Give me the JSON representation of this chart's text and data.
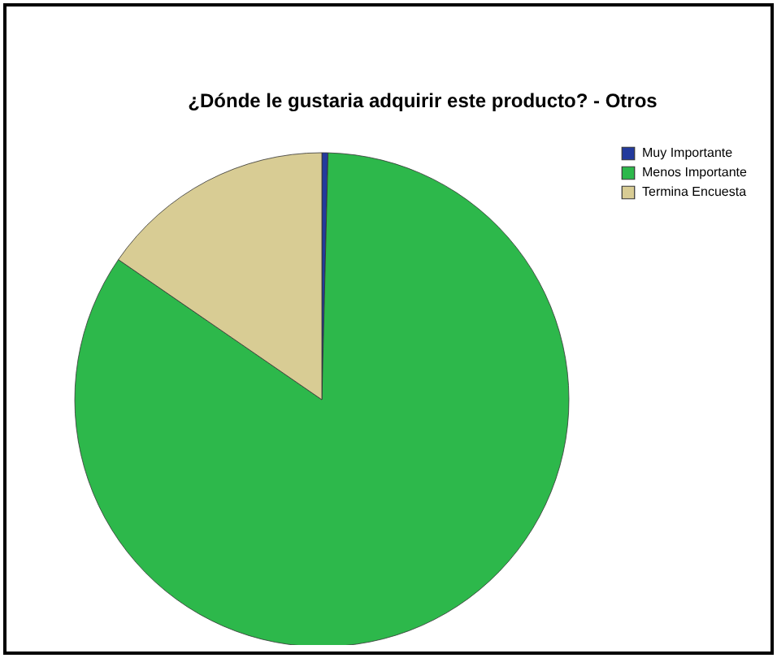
{
  "chart_data": {
    "type": "pie",
    "title": "¿Dónde le  gustaria adquirir este producto? - Otros",
    "categories": [
      "Muy Importante",
      "Menos Importante",
      "Termina Encuesta"
    ],
    "values": [
      0.4,
      84.2,
      15.4
    ],
    "colors": [
      "#233a9c",
      "#2db84b",
      "#d8cc94"
    ],
    "legend": "top right"
  }
}
